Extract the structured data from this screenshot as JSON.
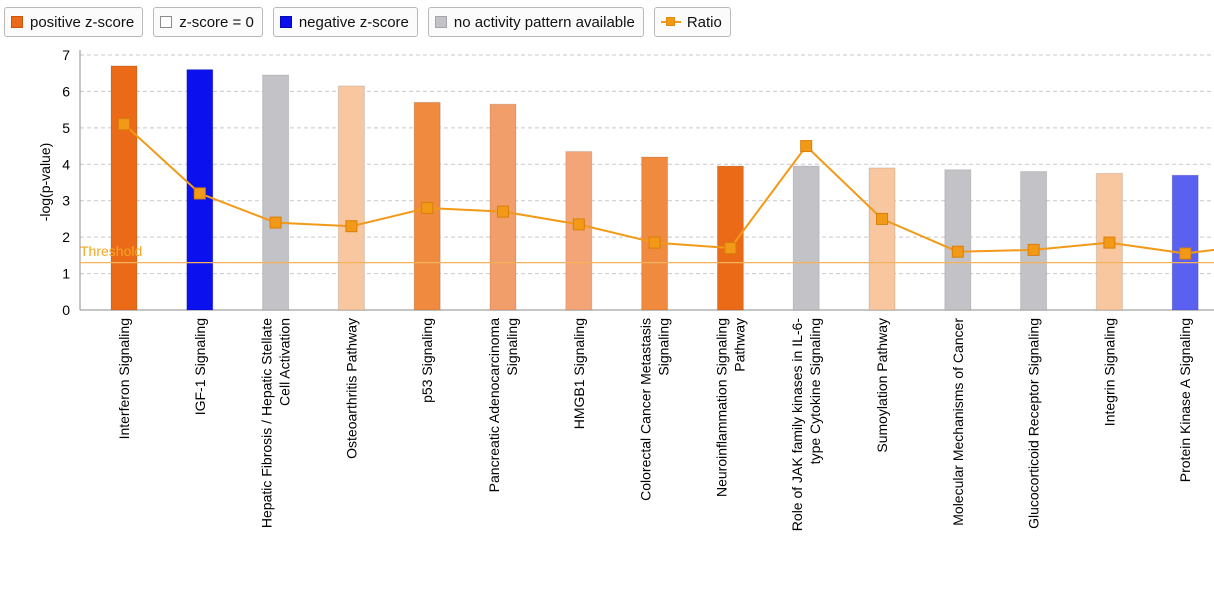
{
  "legend": {
    "positive": {
      "label": "positive z-score",
      "color": "#ea6a17"
    },
    "zero": {
      "label": "z-score = 0",
      "color": "#ffffff"
    },
    "negative": {
      "label": "negative z-score",
      "color": "#0a10ee"
    },
    "none": {
      "label": "no activity pattern available",
      "color": "#c3c3c7"
    },
    "ratio": {
      "label": "Ratio",
      "color": "#f29a17"
    }
  },
  "chart_data": {
    "type": "bar",
    "ylabel": "-log(p-value)",
    "ylim": [
      0,
      7
    ],
    "yticks": [
      0,
      1,
      2,
      3,
      4,
      5,
      6,
      7
    ],
    "grid": true,
    "threshold": {
      "label": "Threshold",
      "value": 1.3
    },
    "categories": [
      [
        "Interferon Signaling"
      ],
      [
        "IGF-1 Signaling"
      ],
      [
        "Hepatic Fibrosis / Hepatic Stellate",
        "Cell Activation"
      ],
      [
        "Osteoarthritis Pathway"
      ],
      [
        "p53 Signaling"
      ],
      [
        "Pancreatic Adenocarcinoma",
        "Signaling"
      ],
      [
        "HMGB1 Signaling"
      ],
      [
        "Colorectal Cancer Metastasis",
        "Signaling"
      ],
      [
        "Neuroinflammation Signaling",
        "Pathway"
      ],
      [
        "Role of JAK family kinases in IL-6-",
        "type Cytokine Signaling"
      ],
      [
        "Sumoylation Pathway"
      ],
      [
        "Molecular Mechanisms of Cancer"
      ],
      [
        "Glucocorticoid Receptor Signaling"
      ],
      [
        "Integrin Signaling"
      ],
      [
        "Protein Kinase A Signaling"
      ]
    ],
    "values": [
      6.7,
      6.6,
      6.45,
      6.15,
      5.7,
      5.65,
      4.35,
      4.2,
      3.95,
      3.95,
      3.9,
      3.85,
      3.8,
      3.75,
      3.7
    ],
    "bar_colors": [
      "#ea6a17",
      "#0a10ee",
      "#c3c3c7",
      "#f8c7a0",
      "#ef8a3e",
      "#f29e6a",
      "#f4a578",
      "#ef8a3e",
      "#ea6a17",
      "#c3c3c7",
      "#f8c7a0",
      "#c3c3c7",
      "#c3c3c7",
      "#f8c7a0",
      "#5a60f0"
    ],
    "series": [
      {
        "name": "Ratio",
        "values": [
          5.1,
          3.2,
          2.4,
          2.3,
          2.8,
          2.7,
          2.35,
          1.85,
          1.7,
          4.5,
          2.5,
          1.6,
          1.65,
          1.85,
          1.55
        ]
      }
    ]
  }
}
